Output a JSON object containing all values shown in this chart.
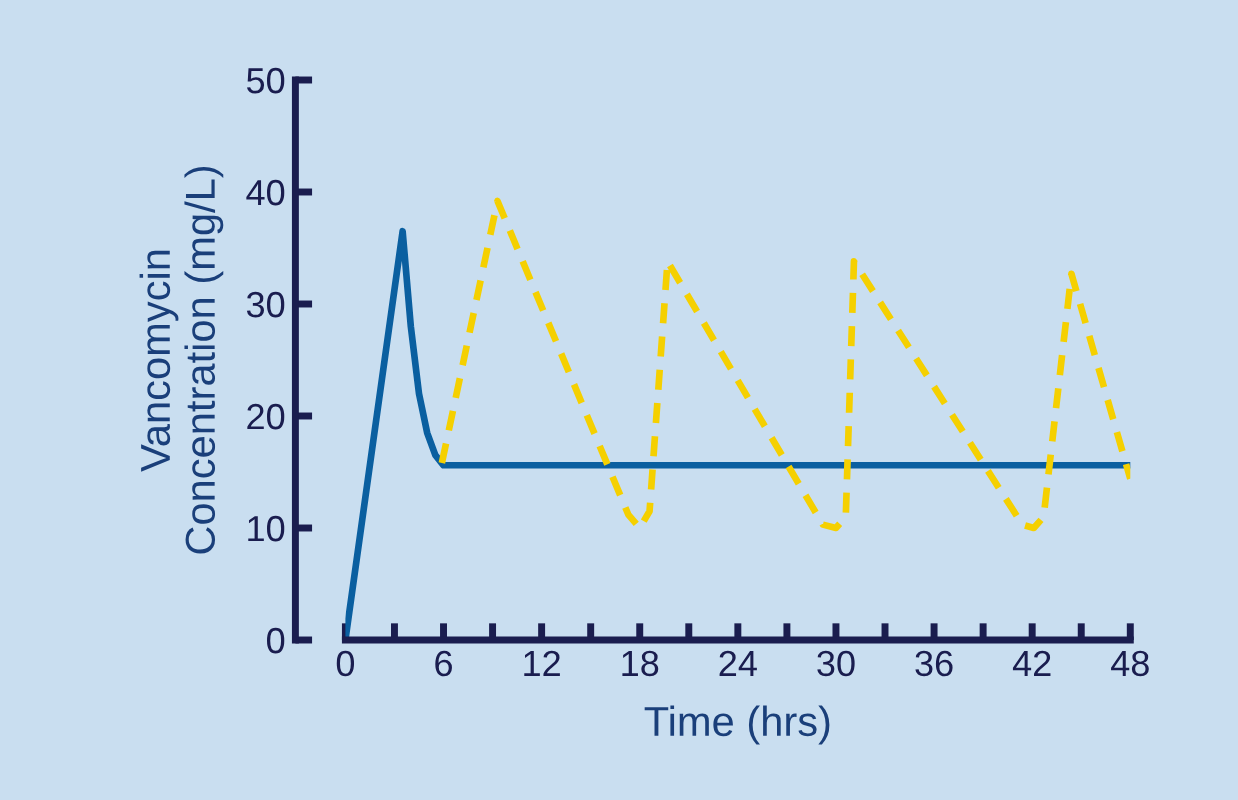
{
  "chart_data": {
    "type": "line",
    "xlabel": "Time (hrs)",
    "ylabel": "Vancomycin\nConcentration (mg/L)",
    "xlim": [
      0,
      48
    ],
    "ylim": [
      0,
      50
    ],
    "xticks": [
      0,
      {
        "value": 3,
        "label": null
      },
      6,
      {
        "value": 9,
        "label": null
      },
      12,
      {
        "value": 15,
        "label": null
      },
      18,
      {
        "value": 21,
        "label": null
      },
      24,
      {
        "value": 27,
        "label": null
      },
      30,
      {
        "value": 33,
        "label": null
      },
      36,
      {
        "value": 39,
        "label": null
      },
      42,
      {
        "value": 45,
        "label": null
      },
      48
    ],
    "yticks": [
      0,
      10,
      20,
      30,
      40,
      50
    ],
    "grid": false,
    "marker": "none",
    "series": [
      {
        "color": "#0a5fa0",
        "line_style": "solid",
        "x": [
          0,
          3.5,
          4,
          4.5,
          5,
          5.5,
          6,
          48
        ],
        "values": [
          0,
          36.5,
          28,
          22,
          18.5,
          16.5,
          15.6,
          15.6
        ]
      },
      {
        "color": "#f5d000",
        "line_style": "dashed",
        "x": [
          5.9,
          9.3,
          17.3,
          18,
          18.6,
          19.7,
          29.2,
          30,
          30.6,
          31.1,
          41.4,
          42.1,
          42.7,
          44.4,
          48
        ],
        "values": [
          15.8,
          39.2,
          11.2,
          10,
          11.5,
          33.8,
          10.3,
          10,
          11,
          33.8,
          10.3,
          10,
          11,
          32.7,
          14.4
        ]
      }
    ]
  }
}
